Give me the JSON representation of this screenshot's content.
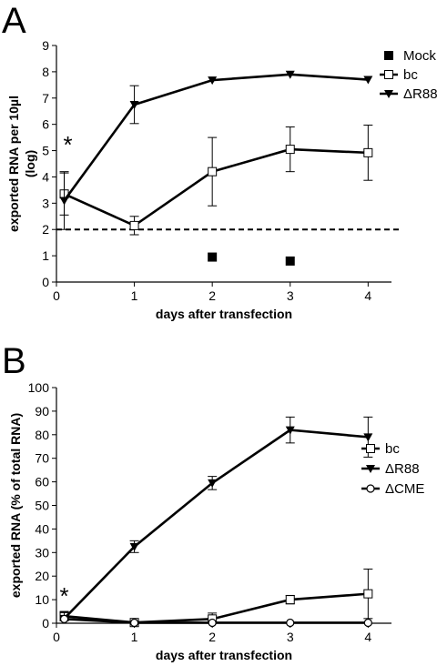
{
  "chart_data": [
    {
      "panel": "A",
      "type": "line",
      "xlabel": "days after transfection",
      "ylabel": "exported RNA per 10µl (log)",
      "ylabel_lines": [
        "exported RNA per 10µl",
        "(log)"
      ],
      "xlim": [
        0,
        4.3
      ],
      "ylim": [
        0,
        9
      ],
      "xticks": [
        0,
        1,
        2,
        3,
        4
      ],
      "yticks": [
        0,
        1,
        2,
        3,
        4,
        5,
        6,
        7,
        8,
        9
      ],
      "threshold": 2,
      "annotation": "*",
      "legend_position": "top-right",
      "series": [
        {
          "name": "Mock",
          "marker": "filled-square",
          "line": false,
          "x": [
            2,
            3
          ],
          "y": [
            0.95,
            0.8
          ],
          "error": [
            0,
            0
          ]
        },
        {
          "name": "bc",
          "marker": "open-square",
          "line": true,
          "x": [
            0.1,
            1,
            2,
            3,
            4
          ],
          "y": [
            3.35,
            2.15,
            4.2,
            5.05,
            4.92
          ],
          "error": [
            0.8,
            0.35,
            1.3,
            0.85,
            1.05
          ]
        },
        {
          "name": "ΔR88",
          "marker": "filled-triangle-down",
          "line": true,
          "x": [
            0.1,
            1,
            2,
            3,
            4
          ],
          "y": [
            3.1,
            6.75,
            7.68,
            7.9,
            7.7
          ],
          "error": [
            1.1,
            0.72,
            0,
            0,
            0
          ]
        }
      ]
    },
    {
      "panel": "B",
      "type": "line",
      "xlabel": "days after transfection",
      "ylabel": "exported RNA (% of total RNA)",
      "ylabel_lines": [
        "exported RNA (% of total RNA)"
      ],
      "xlim": [
        0,
        4.3
      ],
      "ylim": [
        0,
        100
      ],
      "xticks": [
        0,
        1,
        2,
        3,
        4
      ],
      "yticks": [
        0,
        10,
        20,
        30,
        40,
        50,
        60,
        70,
        80,
        90,
        100
      ],
      "annotation": "*",
      "legend_position": "right",
      "series": [
        {
          "name": "bc",
          "marker": "open-square",
          "line": true,
          "x": [
            0.1,
            1,
            2,
            3,
            4
          ],
          "y": [
            3,
            0.3,
            1.8,
            10,
            12.5
          ],
          "error": [
            2,
            0,
            2.5,
            1.8,
            10.5
          ]
        },
        {
          "name": "ΔR88",
          "marker": "filled-triangle-down",
          "line": true,
          "x": [
            0.1,
            1,
            2,
            3,
            4
          ],
          "y": [
            2,
            32.5,
            59.5,
            82,
            79
          ],
          "error": [
            2.5,
            2.5,
            2.8,
            5.5,
            8.5
          ]
        },
        {
          "name": "ΔCME",
          "marker": "open-circle",
          "line": true,
          "x": [
            0.1,
            1,
            2,
            3,
            4
          ],
          "y": [
            1.8,
            0.2,
            0.2,
            0.2,
            0.2
          ],
          "error": [
            0,
            0,
            0,
            0,
            0
          ]
        }
      ]
    }
  ]
}
